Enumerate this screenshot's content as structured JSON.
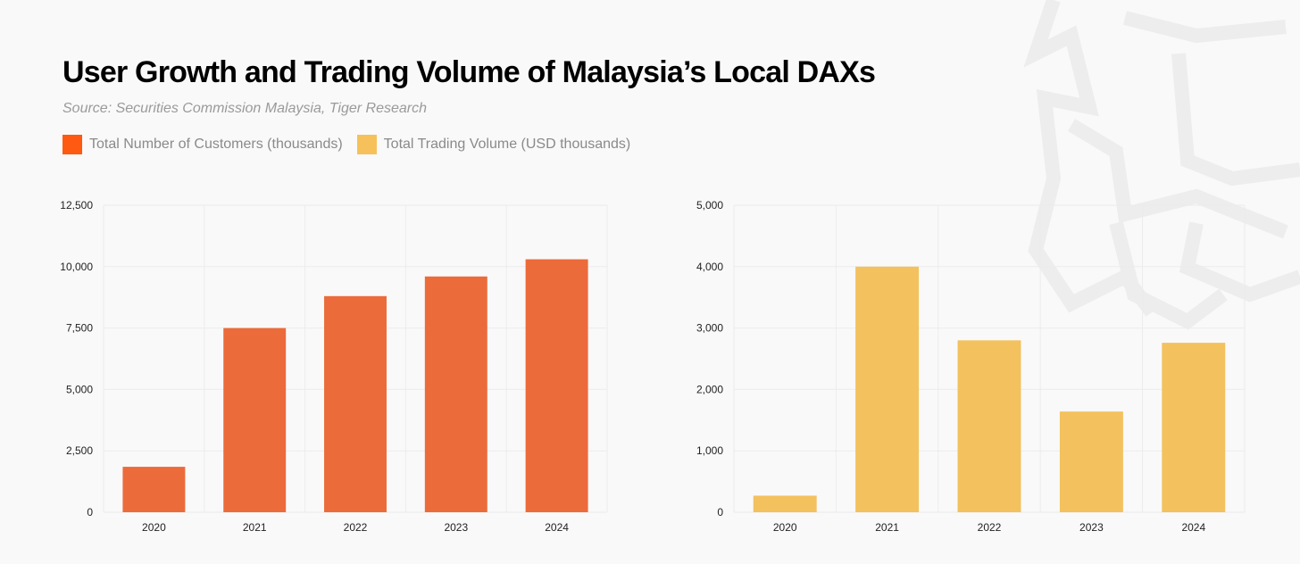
{
  "title": "User Growth and Trading Volume of Malaysia’s Local DAXs",
  "subtitle": "Source: Securities Commission Malaysia, Tiger Research",
  "legend": [
    {
      "label": "Total Number of Customers (thousands)",
      "color": "#ff5a12"
    },
    {
      "label": "Total Trading Volume (USD thousands)",
      "color": "#f6c15b"
    }
  ],
  "watermark_icon": "tiger-logo-icon",
  "chart_data": [
    {
      "type": "bar",
      "series_name": "Total Number of Customers (thousands)",
      "categories": [
        "2020",
        "2021",
        "2022",
        "2023",
        "2024"
      ],
      "values": [
        1850,
        7500,
        8800,
        9600,
        10300
      ],
      "ylim": [
        0,
        12500
      ],
      "yticks": [
        0,
        2500,
        5000,
        7500,
        10000,
        12500
      ],
      "ytick_labels": [
        "0",
        "2,500",
        "5,000",
        "7,500",
        "10,000",
        "12,500"
      ],
      "color": "#ec6b3a",
      "grid": true
    },
    {
      "type": "bar",
      "series_name": "Total Trading Volume (USD thousands)",
      "categories": [
        "2020",
        "2021",
        "2022",
        "2023",
        "2024"
      ],
      "values": [
        270,
        4000,
        2800,
        1640,
        2760
      ],
      "ylim": [
        0,
        5000
      ],
      "yticks": [
        0,
        1000,
        2000,
        3000,
        4000,
        5000
      ],
      "ytick_labels": [
        "0",
        "1,000",
        "2,000",
        "3,000",
        "4,000",
        "5,000"
      ],
      "color": "#f3c15e",
      "grid": true
    }
  ]
}
